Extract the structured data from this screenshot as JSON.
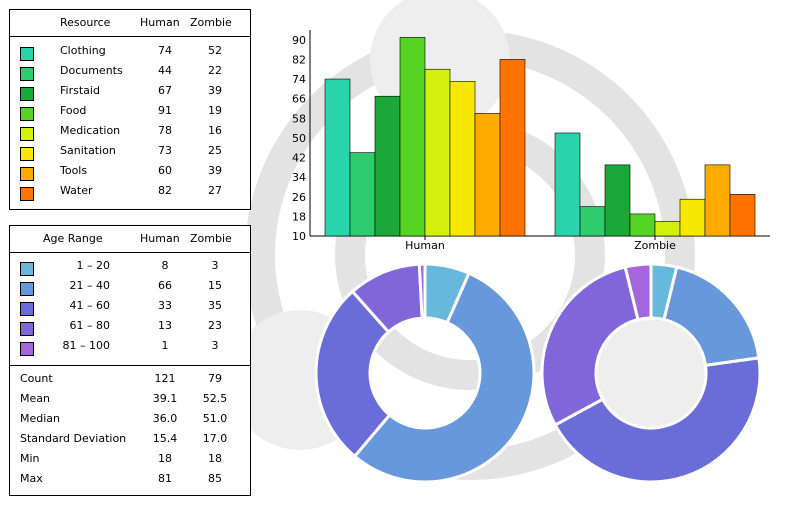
{
  "resources": {
    "headers": {
      "name": "Resource",
      "human": "Human",
      "zombie": "Zombie"
    },
    "rows": [
      {
        "name": "Clothing",
        "human": "74",
        "zombie": "52",
        "color": "#2ad4ab"
      },
      {
        "name": "Documents",
        "human": "44",
        "zombie": "22",
        "color": "#2ecc6e"
      },
      {
        "name": "Firstaid",
        "human": "67",
        "zombie": "39",
        "color": "#1aa838"
      },
      {
        "name": "Food",
        "human": "91",
        "zombie": "19",
        "color": "#55d424"
      },
      {
        "name": "Medication",
        "human": "78",
        "zombie": "16",
        "color": "#d4f00e"
      },
      {
        "name": "Sanitation",
        "human": "73",
        "zombie": "25",
        "color": "#f8e800"
      },
      {
        "name": "Tools",
        "human": "60",
        "zombie": "39",
        "color": "#ffaa00"
      },
      {
        "name": "Water",
        "human": "82",
        "zombie": "27",
        "color": "#ff7400"
      }
    ]
  },
  "ages": {
    "headers": {
      "name": "Age Range",
      "human": "Human",
      "zombie": "Zombie"
    },
    "rows": [
      {
        "name": "1 – 20",
        "human": "8",
        "zombie": "3",
        "color": "#68b8dc"
      },
      {
        "name": "21 – 40",
        "human": "66",
        "zombie": "15",
        "color": "#6898dc"
      },
      {
        "name": "41 – 60",
        "human": "33",
        "zombie": "35",
        "color": "#6a6cd8"
      },
      {
        "name": "61 – 80",
        "human": "13",
        "zombie": "23",
        "color": "#8066d8"
      },
      {
        "name": "81 – 100",
        "human": "1",
        "zombie": "3",
        "color": "#a366dc"
      }
    ],
    "stats": [
      {
        "name": "Count",
        "human": "121",
        "zombie": "79"
      },
      {
        "name": "Mean",
        "human": "39.1",
        "zombie": "52.5"
      },
      {
        "name": "Median",
        "human": "36.0",
        "zombie": "51.0"
      },
      {
        "name": "Standard Deviation",
        "human": "15.4",
        "zombie": "17.0"
      },
      {
        "name": "Min",
        "human": "18",
        "zombie": "18"
      },
      {
        "name": "Max",
        "human": "81",
        "zombie": "85"
      }
    ]
  },
  "chart_data": [
    {
      "type": "bar",
      "categories": [
        "Human",
        "Zombie"
      ],
      "series": [
        {
          "name": "Clothing",
          "values": [
            74,
            52
          ],
          "color": "#2ad4ab"
        },
        {
          "name": "Documents",
          "values": [
            44,
            22
          ],
          "color": "#2ecc6e"
        },
        {
          "name": "Firstaid",
          "values": [
            67,
            39
          ],
          "color": "#1aa838"
        },
        {
          "name": "Food",
          "values": [
            91,
            19
          ],
          "color": "#55d424"
        },
        {
          "name": "Medication",
          "values": [
            78,
            16
          ],
          "color": "#d4f00e"
        },
        {
          "name": "Sanitation",
          "values": [
            73,
            25
          ],
          "color": "#f8e800"
        },
        {
          "name": "Tools",
          "values": [
            60,
            39
          ],
          "color": "#ffaa00"
        },
        {
          "name": "Water",
          "values": [
            82,
            27
          ],
          "color": "#ff7400"
        }
      ],
      "ylim": [
        10,
        94
      ],
      "yticks": [
        "10",
        "18",
        "26",
        "34",
        "42",
        "50",
        "58",
        "66",
        "74",
        "82",
        "90"
      ],
      "grid": false
    },
    {
      "type": "pie",
      "variant": "donut",
      "title": "",
      "categories": [
        "1 – 20",
        "21 – 40",
        "41 – 60",
        "61 – 80",
        "81 – 100"
      ],
      "values": [
        8,
        66,
        33,
        13,
        1
      ],
      "colors": [
        "#68b8dc",
        "#6898dc",
        "#6a6cd8",
        "#8066d8",
        "#a366dc"
      ]
    },
    {
      "type": "pie",
      "variant": "donut",
      "title": "",
      "categories": [
        "1 – 20",
        "21 – 40",
        "41 – 60",
        "61 – 80",
        "81 – 100"
      ],
      "values": [
        3,
        15,
        35,
        23,
        3
      ],
      "colors": [
        "#68b8dc",
        "#6898dc",
        "#6a6cd8",
        "#8066d8",
        "#a366dc"
      ]
    }
  ]
}
